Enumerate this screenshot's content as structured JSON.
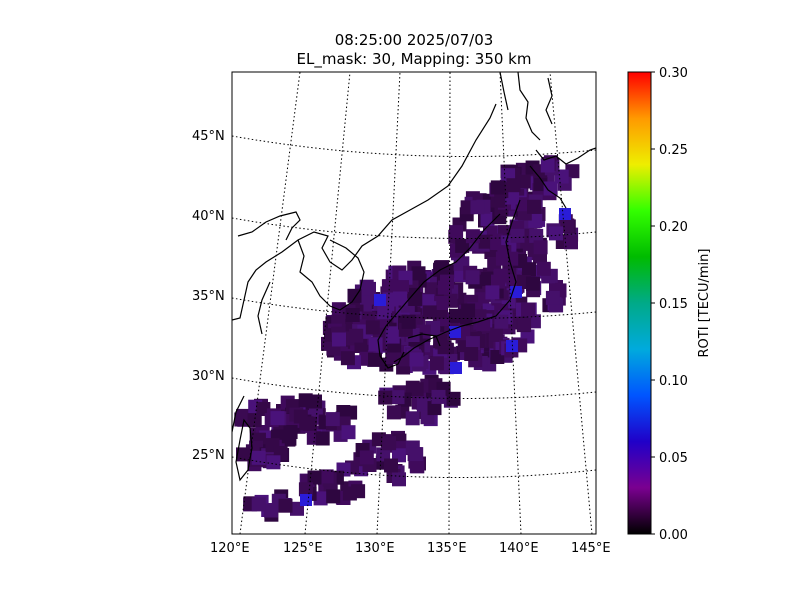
{
  "title_line1": "08:25:00 2025/07/03",
  "title_line2": "EL_mask: 30, Mapping: 350 km",
  "lat_labels": [
    "45°N",
    "40°N",
    "35°N",
    "30°N",
    "25°N"
  ],
  "lon_labels": [
    "120°E",
    "125°E",
    "130°E",
    "135°E",
    "140°E",
    "145°E"
  ],
  "colorbar": {
    "label": "ROTI [TECU/min]",
    "ticks": [
      "0.00",
      "0.05",
      "0.10",
      "0.15",
      "0.20",
      "0.25",
      "0.30"
    ],
    "min": 0.0,
    "max": 0.3,
    "colormap": "nipy_spectral"
  },
  "map_extent": {
    "lon": [
      120,
      145
    ],
    "lat": [
      20,
      49
    ]
  },
  "colors": {
    "background_roti": "#3b0a52",
    "frame": "#000000",
    "coastline": "#000000"
  }
}
